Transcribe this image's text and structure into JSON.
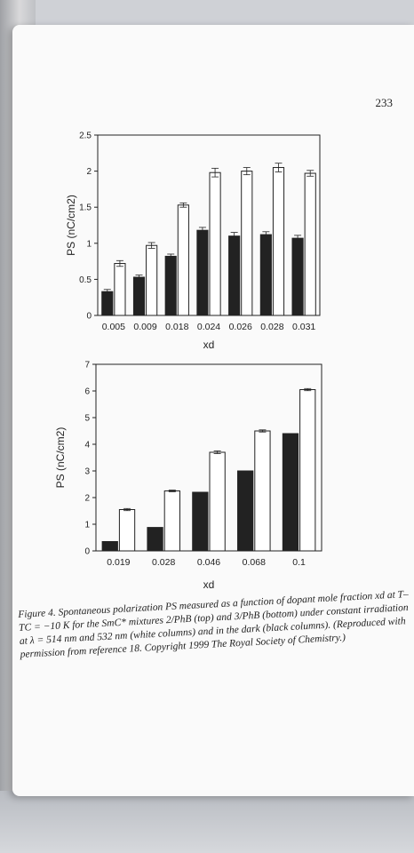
{
  "page": {
    "number": "233"
  },
  "caption": {
    "text": "Figure 4. Spontaneous polarization PS measured as a function of dopant mole fraction xd at T–TC = −10 K for the SmC* mixtures 2/PhB (top) and 3/PhB (bottom) under constant irradiation at λ = 514 nm and 532 nm (white columns) and in the dark (black columns). (Reproduced with permission from reference 18. Copyright 1999 The Royal Society of Chemistry.)"
  },
  "chart_data": [
    {
      "type": "bar",
      "panel": "top",
      "xlabel": "xd",
      "ylabel": "PS (nC/cm2)",
      "categories": [
        "0.005",
        "0.009",
        "0.018",
        "0.024",
        "0.026",
        "0.028",
        "0.031"
      ],
      "series": [
        {
          "color": "#222222",
          "values": [
            0.33,
            0.53,
            0.82,
            1.18,
            1.1,
            1.12,
            1.07
          ],
          "errors": [
            0.03,
            0.03,
            0.03,
            0.04,
            0.05,
            0.04,
            0.04
          ]
        },
        {
          "color": "#ffffff",
          "values": [
            0.72,
            0.97,
            1.53,
            1.98,
            2.0,
            2.05,
            1.97
          ],
          "errors": [
            0.04,
            0.04,
            0.03,
            0.06,
            0.05,
            0.06,
            0.04
          ]
        }
      ],
      "yticks": [
        "0",
        "0.5",
        "1",
        "1.5",
        "2",
        "2.5"
      ],
      "ylim": [
        0,
        2.5
      ],
      "grid": false
    },
    {
      "type": "bar",
      "panel": "bottom",
      "xlabel": "xd",
      "ylabel": "PS (nC/cm2)",
      "categories": [
        "0.019",
        "0.028",
        "0.046",
        "0.068",
        "0.1"
      ],
      "series": [
        {
          "color": "#222222",
          "values": [
            0.35,
            0.88,
            2.2,
            3.0,
            4.4
          ],
          "errors": [
            0,
            0,
            0,
            0,
            0
          ]
        },
        {
          "color": "#ffffff",
          "values": [
            1.55,
            2.25,
            3.7,
            4.5,
            6.05
          ],
          "errors": [
            0.04,
            0.03,
            0.05,
            0.04,
            0.04
          ]
        }
      ],
      "yticks": [
        "0",
        "1",
        "2",
        "3",
        "4",
        "5",
        "6",
        "7"
      ],
      "ylim": [
        0,
        7
      ],
      "grid": false
    }
  ]
}
